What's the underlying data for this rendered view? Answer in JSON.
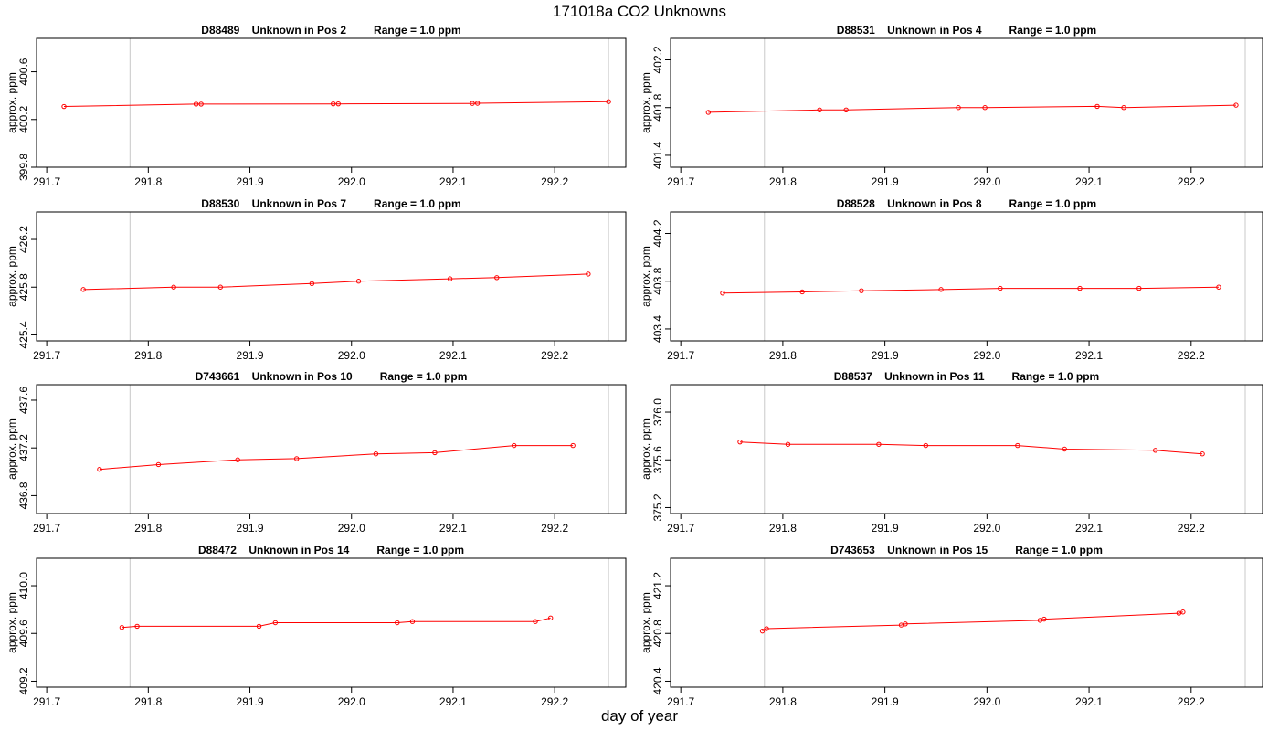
{
  "title": "171018a  CO2 Unknowns",
  "xlabel": "day of year",
  "colors": {
    "series": "#ff0000",
    "frame": "#000000",
    "marker_lines": "#c8c8c8"
  },
  "chart_data": [
    {
      "type": "line",
      "title_parts": [
        "D88489",
        "Unknown in Pos 2",
        "Range = 1.0 ppm"
      ],
      "ylabel": "approx. ppm",
      "xlim": [
        291.69,
        292.27
      ],
      "ylim": [
        399.8,
        400.88
      ],
      "x_ticks": [
        "291.7",
        "291.8",
        "291.9",
        "292.0",
        "292.1",
        "292.2"
      ],
      "y_ticks": [
        "399.8",
        "400.2",
        "400.6"
      ],
      "vlines": [
        291.782,
        292.253
      ],
      "grid": false,
      "legend": "none",
      "x": [
        291.717,
        291.847,
        291.852,
        291.982,
        291.987,
        292.119,
        292.124,
        292.253
      ],
      "y": [
        400.309,
        400.329,
        400.329,
        400.331,
        400.331,
        400.335,
        400.336,
        400.35
      ]
    },
    {
      "type": "line",
      "title_parts": [
        "D88531",
        "Unknown in Pos 4",
        "Range = 1.0 ppm"
      ],
      "ylabel": "approx. ppm",
      "xlim": [
        291.69,
        292.27
      ],
      "ylim": [
        401.3,
        402.38
      ],
      "x_ticks": [
        "291.7",
        "291.8",
        "291.9",
        "292.0",
        "292.1",
        "292.2"
      ],
      "y_ticks": [
        "401.4",
        "401.8",
        "402.2"
      ],
      "vlines": [
        291.782,
        292.253
      ],
      "grid": false,
      "legend": "none",
      "x": [
        291.727,
        291.836,
        291.862,
        291.972,
        291.998,
        292.108,
        292.134,
        292.244
      ],
      "y": [
        401.76,
        401.78,
        401.78,
        401.8,
        401.8,
        401.81,
        401.8,
        401.82
      ]
    },
    {
      "type": "line",
      "title_parts": [
        "D88530",
        "Unknown in Pos 7",
        "Range = 1.0 ppm"
      ],
      "ylabel": "approx. ppm",
      "xlim": [
        291.69,
        292.27
      ],
      "ylim": [
        425.35,
        426.43
      ],
      "x_ticks": [
        "291.7",
        "291.8",
        "291.9",
        "292.0",
        "292.1",
        "292.2"
      ],
      "y_ticks": [
        "425.4",
        "425.8",
        "426.2"
      ],
      "vlines": [
        291.782,
        292.253
      ],
      "grid": false,
      "legend": "none",
      "x": [
        291.736,
        291.825,
        291.871,
        291.961,
        292.007,
        292.097,
        292.143,
        292.233
      ],
      "y": [
        425.78,
        425.8,
        425.8,
        425.83,
        425.85,
        425.87,
        425.88,
        425.91
      ]
    },
    {
      "type": "line",
      "title_parts": [
        "D88528",
        "Unknown in Pos 8",
        "Range = 1.0 ppm"
      ],
      "ylabel": "approx. ppm",
      "xlim": [
        291.69,
        292.27
      ],
      "ylim": [
        403.3,
        404.38
      ],
      "x_ticks": [
        "291.7",
        "291.8",
        "291.9",
        "292.0",
        "292.1",
        "292.2"
      ],
      "y_ticks": [
        "403.4",
        "403.8",
        "404.2"
      ],
      "vlines": [
        291.782,
        292.253
      ],
      "grid": false,
      "legend": "none",
      "x": [
        291.741,
        291.819,
        291.877,
        291.955,
        292.013,
        292.091,
        292.149,
        292.227
      ],
      "y": [
        403.7,
        403.71,
        403.72,
        403.73,
        403.74,
        403.74,
        403.74,
        403.75
      ]
    },
    {
      "type": "line",
      "title_parts": [
        "D743661",
        "Unknown in Pos 10",
        "Range = 1.0 ppm"
      ],
      "ylabel": "approx. ppm",
      "xlim": [
        291.69,
        292.27
      ],
      "ylim": [
        436.65,
        437.73
      ],
      "x_ticks": [
        "291.7",
        "291.8",
        "291.9",
        "292.0",
        "292.1",
        "292.2"
      ],
      "y_ticks": [
        "436.8",
        "437.2",
        "437.6"
      ],
      "vlines": [
        291.782,
        292.253
      ],
      "grid": false,
      "legend": "none",
      "x": [
        291.752,
        291.81,
        291.888,
        291.946,
        292.024,
        292.082,
        292.16,
        292.218
      ],
      "y": [
        437.02,
        437.06,
        437.1,
        437.11,
        437.15,
        437.16,
        437.22,
        437.22
      ]
    },
    {
      "type": "line",
      "title_parts": [
        "D88537",
        "Unknown in Pos 11",
        "Range = 1.0 ppm"
      ],
      "ylabel": "approx. ppm",
      "xlim": [
        291.69,
        292.27
      ],
      "ylim": [
        375.15,
        376.23
      ],
      "x_ticks": [
        "291.7",
        "291.8",
        "291.9",
        "292.0",
        "292.1",
        "292.2"
      ],
      "y_ticks": [
        "375.2",
        "375.6",
        "376.0"
      ],
      "vlines": [
        291.782,
        292.253
      ],
      "grid": false,
      "legend": "none",
      "x": [
        291.758,
        291.805,
        291.894,
        291.94,
        292.03,
        292.076,
        292.165,
        292.211
      ],
      "y": [
        375.75,
        375.73,
        375.73,
        375.72,
        375.72,
        375.69,
        375.68,
        375.65
      ]
    },
    {
      "type": "line",
      "title_parts": [
        "D88472",
        "Unknown in Pos 14",
        "Range = 1.0 ppm"
      ],
      "ylabel": "approx. ppm",
      "xlim": [
        291.69,
        292.27
      ],
      "ylim": [
        409.15,
        410.23
      ],
      "x_ticks": [
        "291.7",
        "291.8",
        "291.9",
        "292.0",
        "292.1",
        "292.2"
      ],
      "y_ticks": [
        "409.2",
        "409.6",
        "410.0"
      ],
      "vlines": [
        291.782,
        292.253
      ],
      "grid": false,
      "legend": "none",
      "x": [
        291.774,
        291.789,
        291.909,
        291.925,
        292.045,
        292.06,
        292.181,
        292.196
      ],
      "y": [
        409.65,
        409.66,
        409.66,
        409.69,
        409.69,
        409.7,
        409.7,
        409.73
      ]
    },
    {
      "type": "line",
      "title_parts": [
        "D743653",
        "Unknown in Pos 15",
        "Range = 1.0 ppm"
      ],
      "ylabel": "approx. ppm",
      "xlim": [
        291.69,
        292.27
      ],
      "ylim": [
        420.35,
        421.43
      ],
      "x_ticks": [
        "291.7",
        "291.8",
        "291.9",
        "292.0",
        "292.1",
        "292.2"
      ],
      "y_ticks": [
        "420.4",
        "420.8",
        "421.2"
      ],
      "vlines": [
        291.782,
        292.253
      ],
      "grid": false,
      "legend": "none",
      "x": [
        291.78,
        291.784,
        291.916,
        291.92,
        292.052,
        292.056,
        292.188,
        292.192
      ],
      "y": [
        420.82,
        420.84,
        420.87,
        420.88,
        420.91,
        420.92,
        420.97,
        420.98
      ]
    }
  ]
}
